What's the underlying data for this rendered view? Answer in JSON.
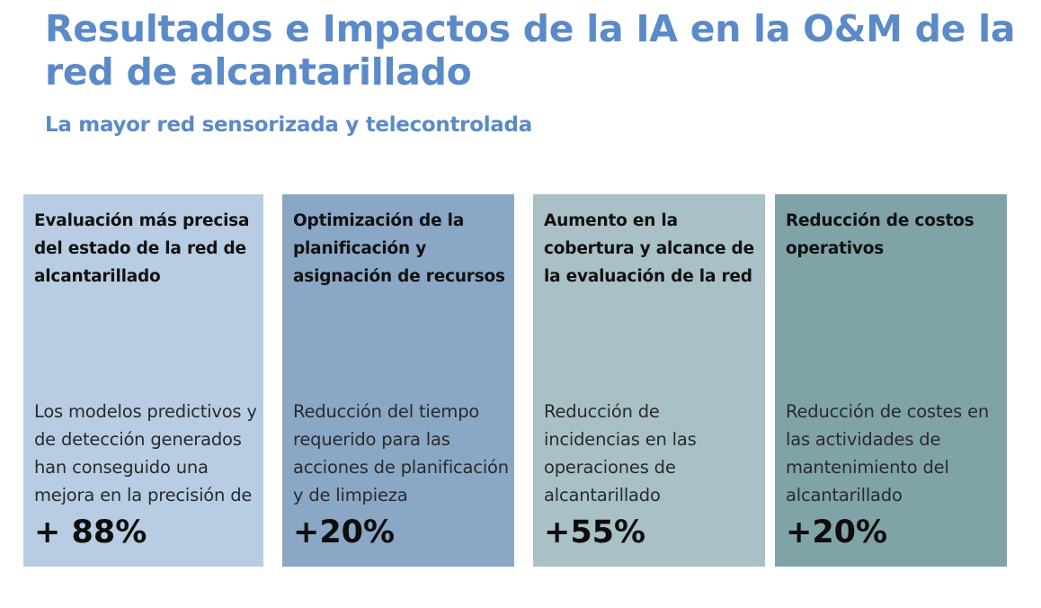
{
  "header": {
    "title": "Resultados e Impactos de la IA en la O&M de la red de alcantarillado",
    "subtitle": "La mayor red sensorizada y telecontrolada"
  },
  "cards": [
    {
      "title": "Evaluación más precisa del estado de la red de alcantarillado",
      "description": "Los modelos predictivos y de detección generados han conseguido una mejora en la precisión de",
      "metric": "+ 88%",
      "color": "#b8cde3"
    },
    {
      "title": "Optimización de la planificación y asignación de recursos",
      "description": "Reducción del tiempo requerido para las acciones de planificación y de limpieza",
      "metric": "+20%",
      "color": "#8aa7c6"
    },
    {
      "title": "Aumento en la cobertura y alcance de la evaluación de la red",
      "description": "Reducción de incidencias en las operaciones de alcantarillado",
      "metric": "+55%",
      "color": "#a9c1c6"
    },
    {
      "title": "Reducción de costos operativos",
      "description": "Reducción de costes en las actividades de mantenimiento del alcantarillado",
      "metric": "+20%",
      "color": "#80a3a8"
    }
  ],
  "theme": {
    "heading_color": "#5b8ac9"
  }
}
